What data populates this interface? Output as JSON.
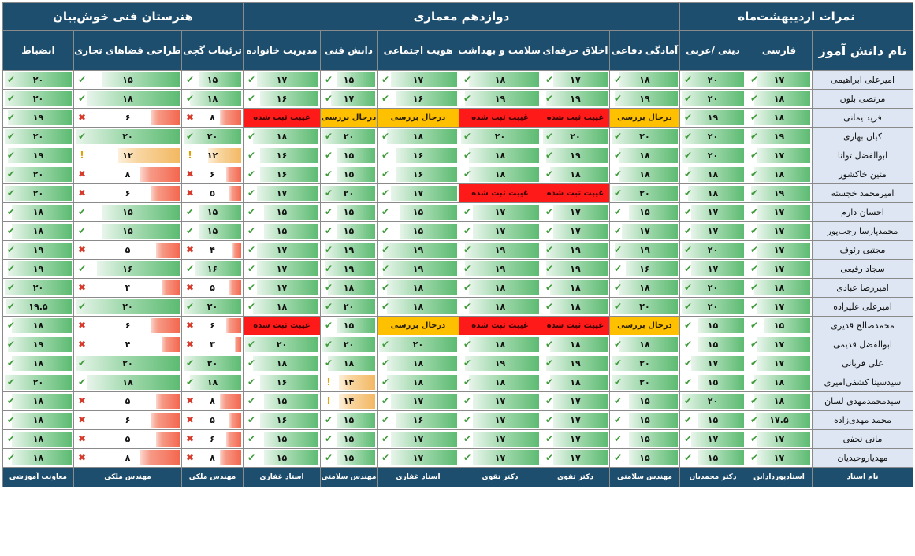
{
  "groups": [
    {
      "label": "نمرات اردیبهشت‌ماه",
      "span": 3
    },
    {
      "label": "دوازدهم معماری",
      "span": 6
    },
    {
      "label": "هنرستان فنی خوش‌بیان",
      "span": 3
    }
  ],
  "columns": [
    {
      "key": "name",
      "label": "نام دانش آموز"
    },
    {
      "key": "farsi",
      "label": "فارسی"
    },
    {
      "key": "dini",
      "label": "دینی /عربی"
    },
    {
      "key": "amadegi",
      "label": "آمادگی دفاعی"
    },
    {
      "key": "akhlagh",
      "label": "اخلاق حرفه‌ای"
    },
    {
      "key": "salamat",
      "label": "سلامت و بهداشت"
    },
    {
      "key": "hoviat",
      "label": "هویت اجتماعی"
    },
    {
      "key": "danesh",
      "label": "دانش فنی"
    },
    {
      "key": "modiriat",
      "label": "مدیریت خانواده"
    },
    {
      "key": "tazinat",
      "label": "تزئینات گچی"
    },
    {
      "key": "tarahi",
      "label": "طراحی فضاهای تجاری"
    },
    {
      "key": "enzebat",
      "label": "انضباط"
    }
  ],
  "max_score": 20,
  "status_labels": {
    "absent": "غیبت ثبت شده",
    "review": "درحال بررسی"
  },
  "colors": {
    "header": "#1e4e6e",
    "high": "#5dbb72",
    "mid": "#f3b862",
    "low": "#f4674f",
    "absent": "#ff1a1a",
    "review": "#ffc000",
    "name_cell": "#dde6f2"
  },
  "icons": {
    "high": "check-icon",
    "mid": "exclamation-icon",
    "low": "cross-icon"
  },
  "students": [
    {
      "name": "امیرعلی ابراهیمی",
      "scores": [
        "۱۷",
        "۲۰",
        "۱۸",
        "۱۷",
        "۱۸",
        "۱۷",
        "۱۵",
        "۱۷",
        "۱۵",
        "۱۵",
        "۲۰"
      ]
    },
    {
      "name": "مرتضی بلون",
      "scores": [
        "۱۸",
        "۲۰",
        "۱۹",
        "۱۹",
        "۱۹",
        "۱۶",
        "۱۷",
        "۱۶",
        "۱۸",
        "۱۸",
        "۲۰"
      ]
    },
    {
      "name": "فرید یمانی",
      "scores": [
        "۱۸",
        "۱۹",
        "review",
        "absent",
        "absent",
        "review",
        "review",
        "absent",
        "۸",
        "۶",
        "۱۹"
      ]
    },
    {
      "name": "کیان بهاری",
      "scores": [
        "۱۹",
        "۲۰",
        "۲۰",
        "۲۰",
        "۲۰",
        "۱۸",
        "۲۰",
        "۱۸",
        "۲۰",
        "۲۰",
        "۲۰"
      ]
    },
    {
      "name": "ابوالفضل توانا",
      "scores": [
        "۱۷",
        "۲۰",
        "۱۸",
        "۱۹",
        "۱۸",
        "۱۶",
        "۱۵",
        "۱۶",
        "۱۲",
        "۱۲",
        "۱۹"
      ]
    },
    {
      "name": "متین خاکشور",
      "scores": [
        "۱۸",
        "۱۸",
        "۱۸",
        "۱۸",
        "۱۸",
        "۱۶",
        "۱۵",
        "۱۶",
        "۶",
        "۸",
        "۲۰"
      ]
    },
    {
      "name": "امیرمحمد خجسته",
      "scores": [
        "۱۹",
        "۱۸",
        "۲۰",
        "absent",
        "absent",
        "۱۷",
        "۲۰",
        "۱۷",
        "۵",
        "۶",
        "۲۰"
      ]
    },
    {
      "name": "احسان دارم",
      "scores": [
        "۱۷",
        "۱۷",
        "۱۵",
        "۱۷",
        "۱۷",
        "۱۵",
        "۱۵",
        "۱۵",
        "۱۵",
        "۱۵",
        "۱۸"
      ]
    },
    {
      "name": "محمدپارسا رجب‌پور",
      "scores": [
        "۱۷",
        "۱۷",
        "۱۷",
        "۱۷",
        "۱۷",
        "۱۵",
        "۱۵",
        "۱۵",
        "۱۵",
        "۱۵",
        "۱۸"
      ]
    },
    {
      "name": "مجتبی رئوف",
      "scores": [
        "۱۷",
        "۲۰",
        "۱۹",
        "۱۹",
        "۱۹",
        "۱۹",
        "۱۹",
        "۱۷",
        "۴",
        "۵",
        "۱۹"
      ]
    },
    {
      "name": "سجاد رفیعی",
      "scores": [
        "۱۷",
        "۱۷",
        "۱۶",
        "۱۹",
        "۱۹",
        "۱۹",
        "۱۹",
        "۱۷",
        "۱۶",
        "۱۶",
        "۱۹"
      ]
    },
    {
      "name": "امیررضا عبادی",
      "scores": [
        "۱۸",
        "۲۰",
        "۱۸",
        "۱۸",
        "۱۸",
        "۱۸",
        "۱۸",
        "۱۷",
        "۵",
        "۴",
        "۲۰"
      ]
    },
    {
      "name": "امیرعلی علیزاده",
      "scores": [
        "۱۷",
        "۲۰",
        "۲۰",
        "۱۸",
        "۱۸",
        "۱۸",
        "۲۰",
        "۱۸",
        "۲۰",
        "۲۰",
        "۱۹.۵"
      ]
    },
    {
      "name": "محمدصالح قدیری",
      "scores": [
        "۱۵",
        "۱۵",
        "review",
        "absent",
        "absent",
        "review",
        "۱۵",
        "absent",
        "۶",
        "۶",
        "۱۸"
      ]
    },
    {
      "name": "ابوالفضل قدیمی",
      "scores": [
        "۱۷",
        "۱۵",
        "۱۸",
        "۱۸",
        "۱۸",
        "۲۰",
        "۲۰",
        "۲۰",
        "۳",
        "۴",
        "۱۹"
      ]
    },
    {
      "name": "علی قربانی",
      "scores": [
        "۱۷",
        "۱۷",
        "۲۰",
        "۱۹",
        "۱۹",
        "۱۸",
        "۱۸",
        "۱۸",
        "۲۰",
        "۲۰",
        "۱۸"
      ]
    },
    {
      "name": "سیدسینا کشفی‌امیری",
      "scores": [
        "۱۸",
        "۱۵",
        "۲۰",
        "۱۸",
        "۱۸",
        "۱۸",
        "۱۴",
        "۱۶",
        "۱۸",
        "۱۸",
        "۲۰"
      ]
    },
    {
      "name": "سیدمحمدمهدی لسان",
      "scores": [
        "۱۸",
        "۲۰",
        "۱۵",
        "۱۷",
        "۱۷",
        "۱۷",
        "۱۴",
        "۱۵",
        "۸",
        "۵",
        "۱۸"
      ]
    },
    {
      "name": "محمد مهدی‌زاده",
      "scores": [
        "۱۷.۵",
        "۱۵",
        "۱۵",
        "۱۷",
        "۱۷",
        "۱۶",
        "۱۵",
        "۱۶",
        "۵",
        "۶",
        "۱۸"
      ]
    },
    {
      "name": "مانی نجفی",
      "scores": [
        "۱۷",
        "۱۷",
        "۱۵",
        "۱۷",
        "۱۷",
        "۱۷",
        "۱۵",
        "۱۵",
        "۶",
        "۵",
        "۱۸"
      ]
    },
    {
      "name": "مهدیاروحیدیان",
      "scores": [
        "۱۷",
        "۱۵",
        "۱۵",
        "۱۷",
        "۱۷",
        "۱۷",
        "۱۵",
        "۱۵",
        "۸",
        "۸",
        "۱۸"
      ]
    }
  ],
  "teachers": [
    "نام استاد",
    "استادپورداداین",
    "دکتر محمدیان",
    "مهندس سلامتی",
    "دکتر تقوی",
    "دکتر تقوی",
    "استاد غفاری",
    "مهندس سلامتی",
    "استاد غفاری",
    "مهندس ملکی",
    "مهندس ملکی",
    "معاونت آموزشی"
  ]
}
